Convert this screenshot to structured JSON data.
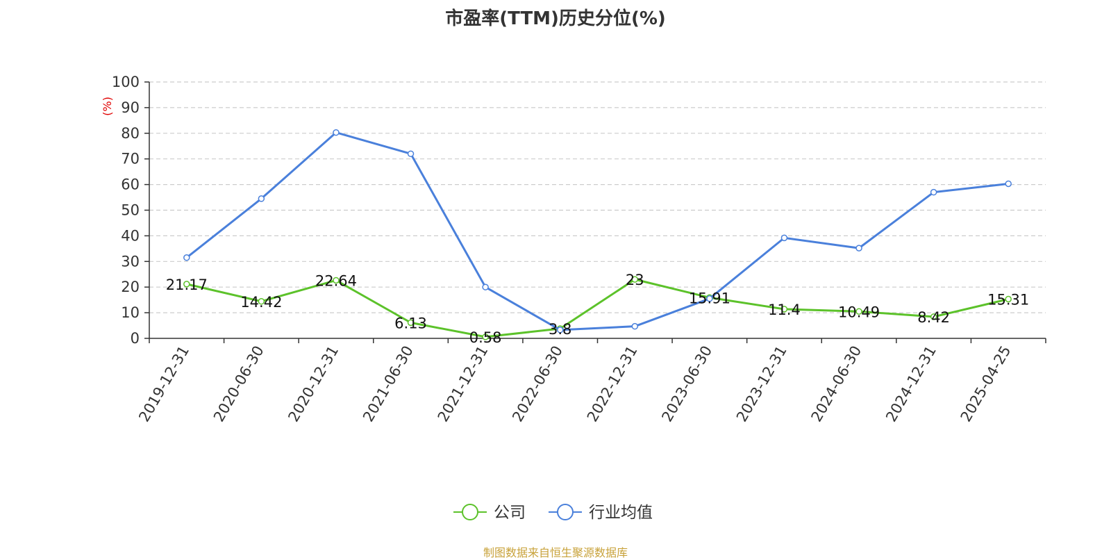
{
  "chart_data": {
    "type": "line",
    "title": "市盈率(TTM)历史分位(%)",
    "ylabel": "(%)",
    "xlabel": "",
    "categories": [
      "2019-12-31",
      "2020-06-30",
      "2020-12-31",
      "2021-06-30",
      "2021-12-31",
      "2022-06-30",
      "2022-12-31",
      "2023-06-30",
      "2023-12-31",
      "2024-06-30",
      "2024-12-31",
      "2025-04-25"
    ],
    "ylim": [
      0,
      100
    ],
    "yticks": [
      0,
      10,
      20,
      30,
      40,
      50,
      60,
      70,
      80,
      90,
      100
    ],
    "grid": true,
    "legend_position": "bottom-center",
    "series": [
      {
        "name": "公司",
        "color": "#5cc22a",
        "values": [
          21.17,
          14.42,
          22.64,
          6.13,
          0.58,
          3.8,
          23,
          15.91,
          11.4,
          10.49,
          8.42,
          15.31
        ],
        "labels": [
          "21.17",
          "14.42",
          "22.64",
          "6.13",
          "0.58",
          "3.8",
          "23",
          "15.91",
          "11.4",
          "10.49",
          "8.42",
          "15.31"
        ]
      },
      {
        "name": "行业均值",
        "color": "#4a80db",
        "values": [
          31.5,
          54.5,
          80.3,
          72,
          20,
          3.3,
          4.7,
          15.5,
          39.2,
          35.2,
          57,
          60.3
        ]
      }
    ]
  },
  "source_text": "制图数据来自恒生聚源数据库"
}
